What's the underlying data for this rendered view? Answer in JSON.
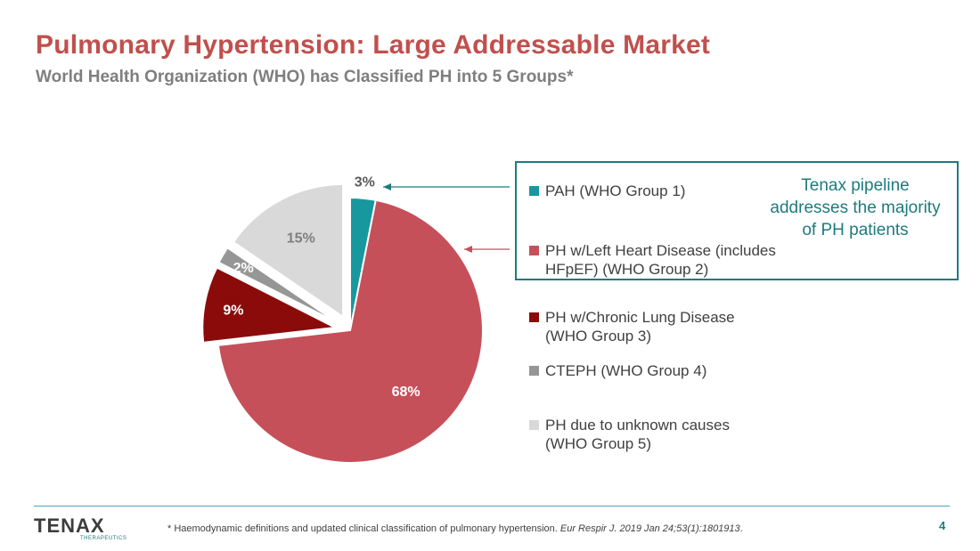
{
  "slide": {
    "title": "Pulmonary Hypertension:  Large Addressable Market",
    "subtitle": "World Health Organization (WHO) has Classified PH into 5 Groups*",
    "callout": [
      "Tenax pipeline",
      "addresses the majority",
      "of PH patients"
    ],
    "footnote_text": "* Haemodynamic definitions and updated clinical classification of pulmonary hypertension. ",
    "footnote_citation": "Eur Respir J. 2019 Jan 24;53(1):1801913",
    "footnote_end": ".",
    "page_number": "4",
    "logo": {
      "text": "TENAX",
      "subtext": "THERAPEUTICS"
    }
  },
  "colors": {
    "title": "#c0504d",
    "accent": "#1e7b7d"
  },
  "chart_data": {
    "type": "pie",
    "title": "",
    "slices": [
      {
        "label": "PAH (WHO Group 1)",
        "value": 3,
        "display": "3%",
        "color": "#17989e",
        "exploded": false
      },
      {
        "label": "PH w/Left Heart Disease (includes HFpEF) (WHO Group 2)",
        "value": 68,
        "display": "68%",
        "color": "#c5505a",
        "exploded": false
      },
      {
        "label": "PH w/Chronic Lung Disease (WHO Group 3)",
        "value": 9,
        "display": "9%",
        "color": "#8b0b0b",
        "exploded": true
      },
      {
        "label": "CTEPH (WHO Group 4)",
        "value": 2,
        "display": "2%",
        "color": "#969696",
        "exploded": true
      },
      {
        "label": "PH due to unknown causes (WHO Group 5)",
        "value": 15,
        "display": "15%",
        "color": "#d9d9d9",
        "exploded": true
      }
    ],
    "legend": [
      {
        "line1": "PAH (WHO Group 1)",
        "line2": ""
      },
      {
        "line1": "PH w/Left Heart Disease (includes",
        "line2": "HFpEF) (WHO Group 2)"
      },
      {
        "line1": "PH w/Chronic Lung Disease",
        "line2": "(WHO Group 3)"
      },
      {
        "line1": "CTEPH (WHO Group 4)",
        "line2": ""
      },
      {
        "line1": "PH due to unknown causes",
        "line2": "(WHO Group 5)"
      }
    ],
    "legend_position": "right"
  }
}
